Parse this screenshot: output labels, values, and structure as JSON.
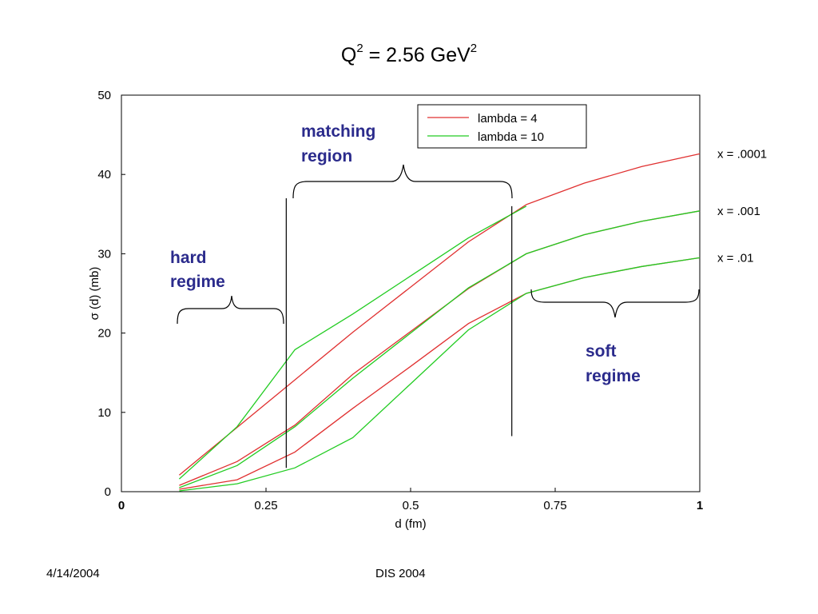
{
  "title": {
    "main": "Q",
    "sup1": "2",
    "mid": " = 2.56 GeV",
    "sup2": "2"
  },
  "footer": {
    "date": "4/14/2004",
    "conference": "DIS 2004"
  },
  "colors": {
    "lambda4": "#e03030",
    "lambda10": "#22cc22",
    "annotation": "#2b2b8c"
  },
  "chart_data": {
    "type": "line",
    "xlabel": "d (fm)",
    "ylabel": "σ (d) (mb)",
    "xlim": [
      0,
      1
    ],
    "ylim": [
      0,
      50
    ],
    "xticks": [
      {
        "v": 0,
        "label": "0"
      },
      {
        "v": 0.25,
        "label": "0.25"
      },
      {
        "v": 0.5,
        "label": "0.5"
      },
      {
        "v": 0.75,
        "label": "0.75"
      },
      {
        "v": 1,
        "label": "1"
      }
    ],
    "yticks": [
      {
        "v": 0,
        "label": "0"
      },
      {
        "v": 10,
        "label": "10"
      },
      {
        "v": 20,
        "label": "20"
      },
      {
        "v": 30,
        "label": "30"
      },
      {
        "v": 40,
        "label": "40"
      },
      {
        "v": 50,
        "label": "50"
      }
    ],
    "grid": false,
    "legend": {
      "position": "top-right",
      "entries": [
        {
          "label": "lambda = 4",
          "color": "#e03030"
        },
        {
          "label": "lambda = 10",
          "color": "#22cc22"
        }
      ]
    },
    "series": [
      {
        "legend": "lambda = 4",
        "curve": "x = .0001",
        "color": "#e03030",
        "x": [
          0.1,
          0.2,
          0.3,
          0.4,
          0.5,
          0.6,
          0.7,
          0.8,
          0.9,
          1.0
        ],
        "y": [
          2.1,
          8.1,
          14.1,
          20.1,
          25.8,
          31.5,
          36.2,
          38.9,
          41.0,
          42.6
        ]
      },
      {
        "legend": "lambda = 10",
        "curve": "x = .0001",
        "color": "#22cc22",
        "x": [
          0.1,
          0.2,
          0.3,
          0.4,
          0.5,
          0.6,
          0.7
        ],
        "y": [
          1.6,
          8.2,
          17.9,
          22.4,
          27.2,
          32.0,
          36.0
        ]
      },
      {
        "legend": "lambda = 4",
        "curve": "x = .001",
        "color": "#e03030",
        "x": [
          0.1,
          0.2,
          0.3,
          0.4,
          0.5,
          0.6,
          0.7,
          0.8,
          0.9,
          1.0
        ],
        "y": [
          0.8,
          3.8,
          8.4,
          14.8,
          20.2,
          25.6,
          30.0,
          32.4,
          34.1,
          35.4
        ]
      },
      {
        "legend": "lambda = 10",
        "curve": "x = .001",
        "color": "#22cc22",
        "x": [
          0.1,
          0.2,
          0.3,
          0.4,
          0.5,
          0.6,
          0.7,
          0.8,
          0.9,
          1.0
        ],
        "y": [
          0.5,
          3.3,
          8.2,
          14.3,
          20.0,
          25.7,
          30.0,
          32.4,
          34.1,
          35.4
        ]
      },
      {
        "legend": "lambda = 4",
        "curve": "x = .01",
        "color": "#e03030",
        "x": [
          0.1,
          0.2,
          0.3,
          0.4,
          0.5,
          0.6,
          0.7,
          0.8,
          0.9,
          1.0
        ],
        "y": [
          0.3,
          1.5,
          5.0,
          10.5,
          15.8,
          21.2,
          25.0,
          27.0,
          28.4,
          29.5
        ]
      },
      {
        "legend": "lambda = 10",
        "curve": "x = .01",
        "color": "#22cc22",
        "x": [
          0.1,
          0.2,
          0.3,
          0.4,
          0.5,
          0.6,
          0.7,
          0.8,
          0.9,
          1.0
        ],
        "y": [
          0.1,
          1.0,
          3.0,
          6.8,
          13.6,
          20.4,
          25.0,
          27.0,
          28.4,
          29.5
        ]
      }
    ],
    "curve_labels": [
      {
        "label": "x = .0001",
        "at_y": 42.6
      },
      {
        "label": "x = .001",
        "at_y": 35.4
      },
      {
        "label": "x = .01",
        "at_y": 29.5
      }
    ],
    "annotations": {
      "hard": {
        "line1": "hard",
        "line2": "regime",
        "from_x": 0.1,
        "to_x": 0.28
      },
      "matching": {
        "line1": "matching",
        "line2": "region",
        "from_x": 0.3,
        "to_x": 0.675
      },
      "soft": {
        "line1": "soft",
        "line2": "regime",
        "from_x": 0.71,
        "to_x": 1.0
      }
    },
    "boundaries": [
      {
        "x": 0.285,
        "y_from": 3,
        "y_to": 37
      },
      {
        "x": 0.675,
        "y_from": 7,
        "y_to": 36
      }
    ]
  }
}
